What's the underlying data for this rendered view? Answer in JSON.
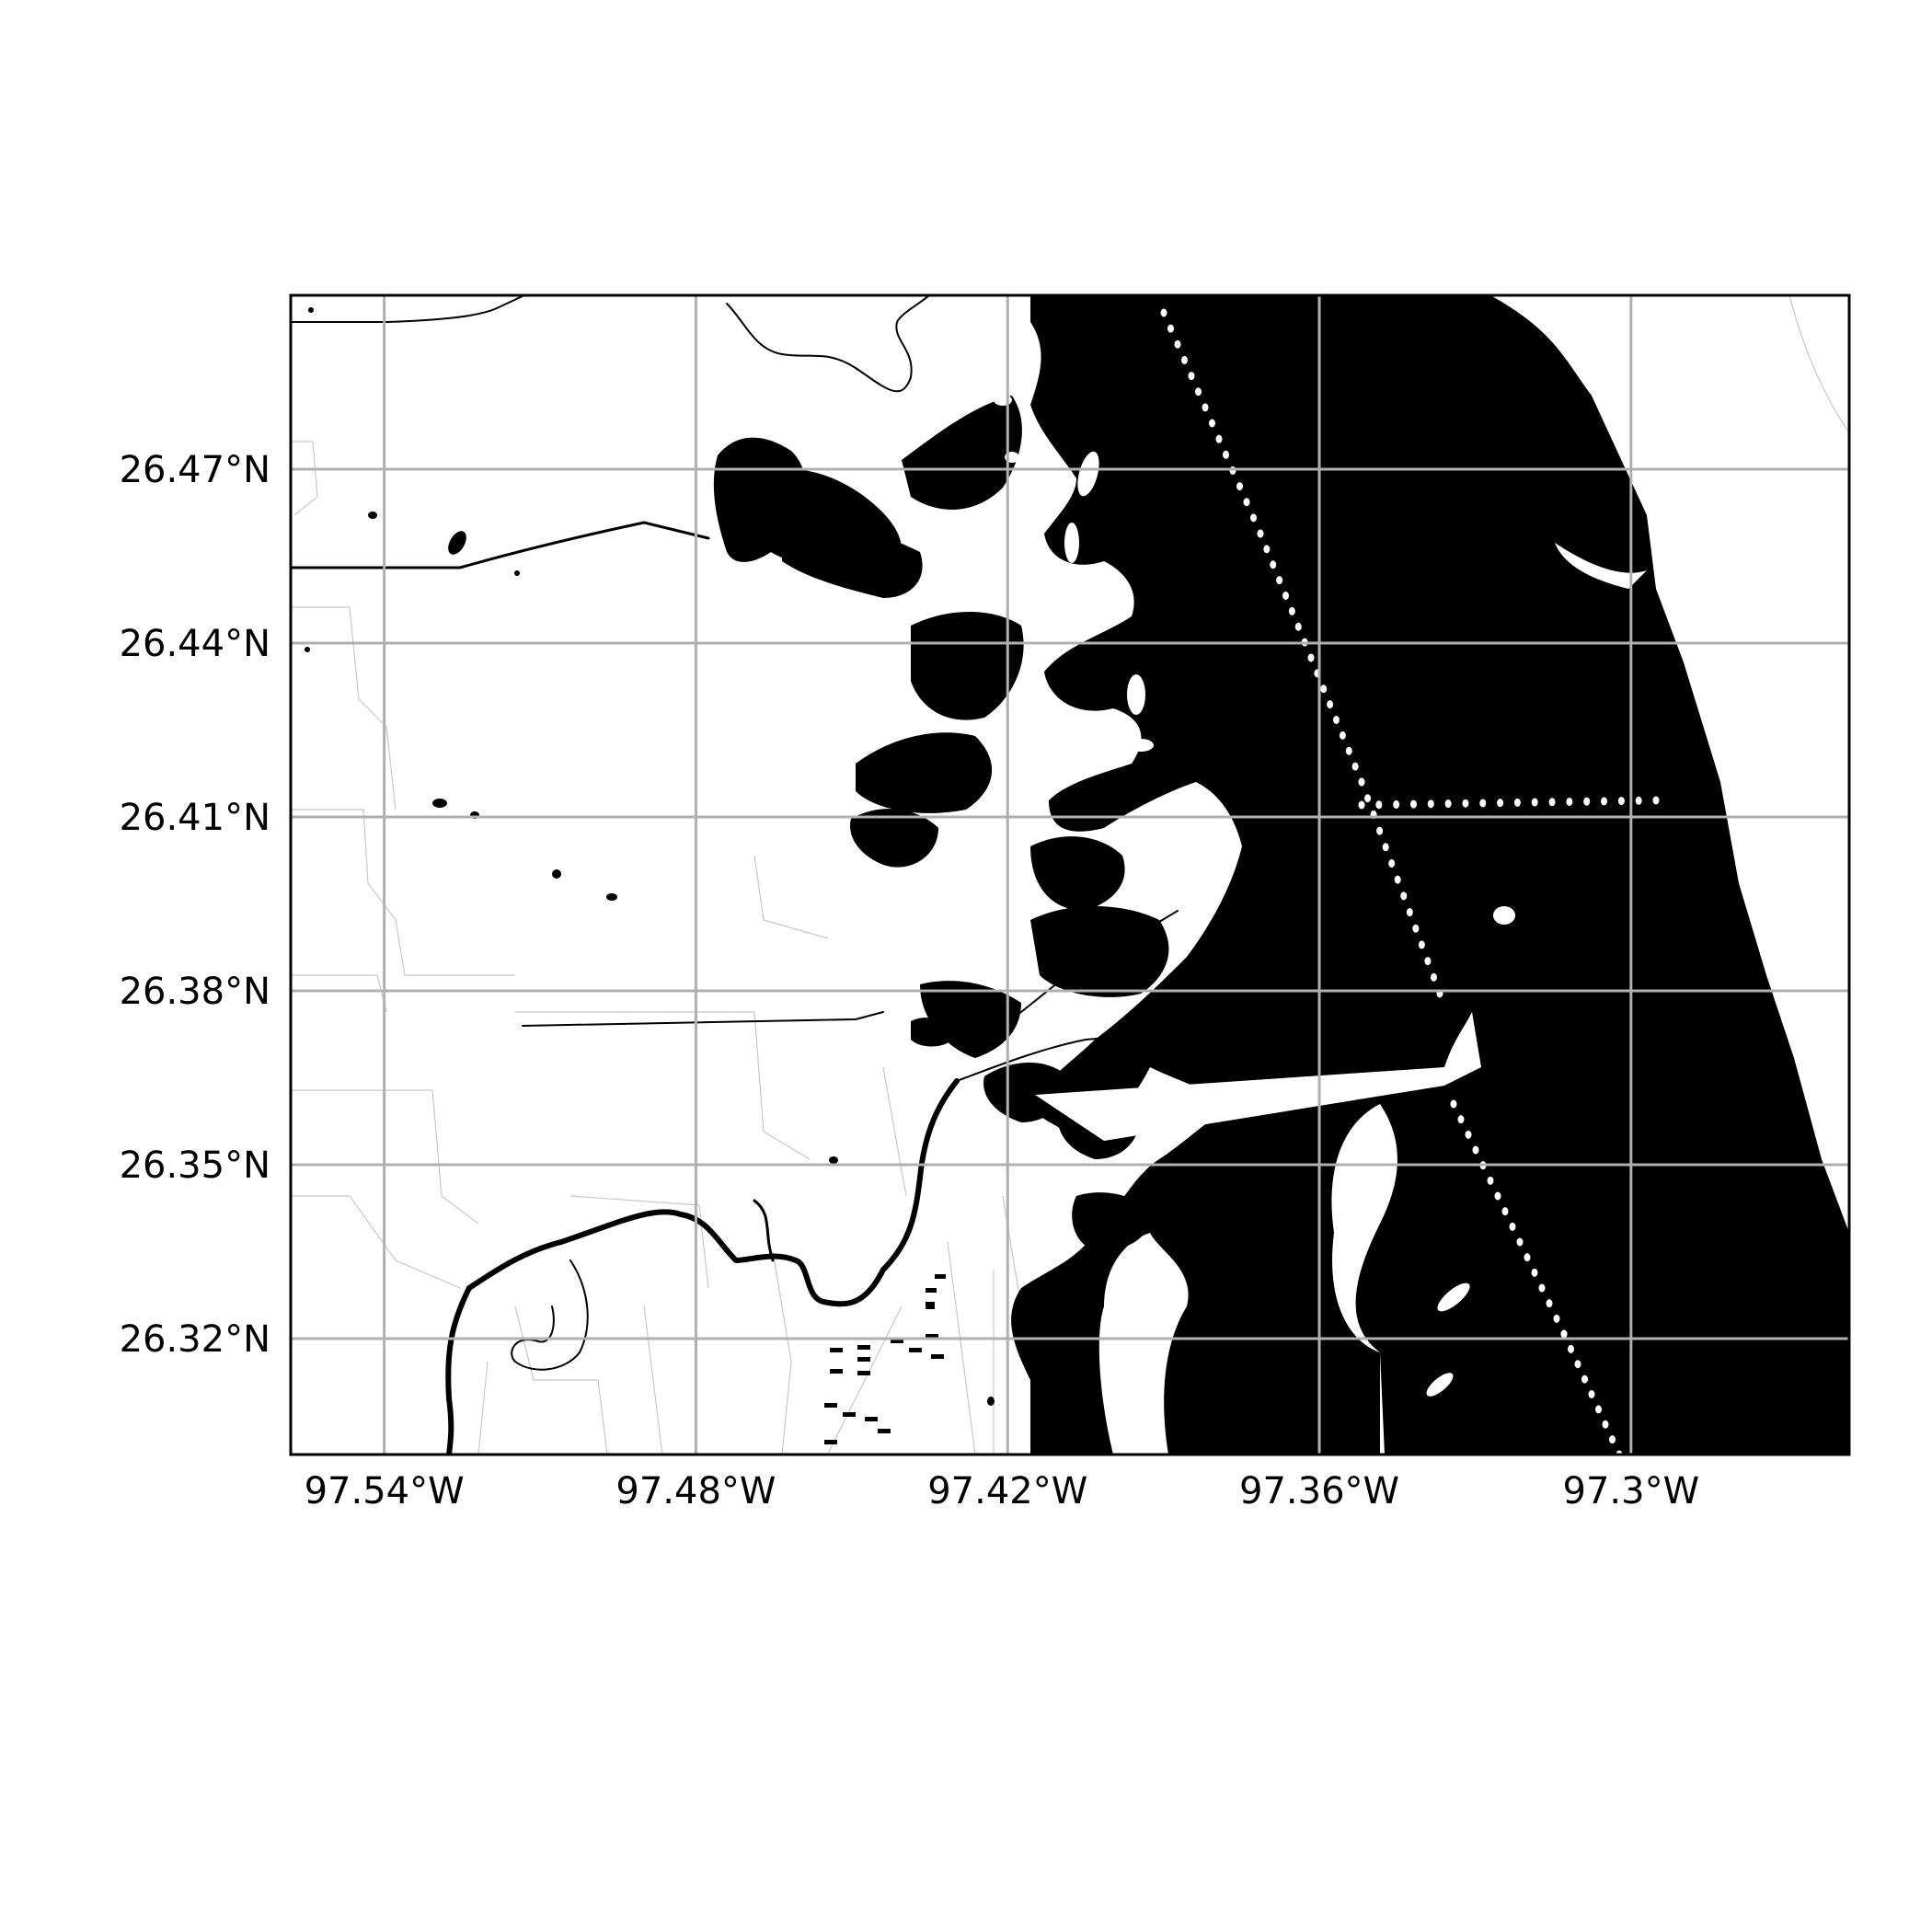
{
  "map": {
    "longitude_ticks": [
      {
        "label": "97.54°W",
        "value": -97.54
      },
      {
        "label": "97.48°W",
        "value": -97.48
      },
      {
        "label": "97.42°W",
        "value": -97.42
      },
      {
        "label": "97.36°W",
        "value": -97.36
      },
      {
        "label": "97.3°W",
        "value": -97.3
      }
    ],
    "latitude_ticks": [
      {
        "label": "26.47°N",
        "value": 26.47
      },
      {
        "label": "26.44°N",
        "value": 26.44
      },
      {
        "label": "26.41°N",
        "value": 26.41
      },
      {
        "label": "26.38°N",
        "value": 26.38
      },
      {
        "label": "26.35°N",
        "value": 26.35
      },
      {
        "label": "26.32°N",
        "value": 26.32
      }
    ],
    "extent": {
      "lon_min": -97.558,
      "lon_max": -97.258,
      "lat_min": 26.3,
      "lat_max": 26.5
    },
    "colors": {
      "water": "#000000",
      "land": "#ffffff",
      "grid": "#b0b0b0",
      "frame": "#000000",
      "roads": "#c8c8c8"
    }
  }
}
